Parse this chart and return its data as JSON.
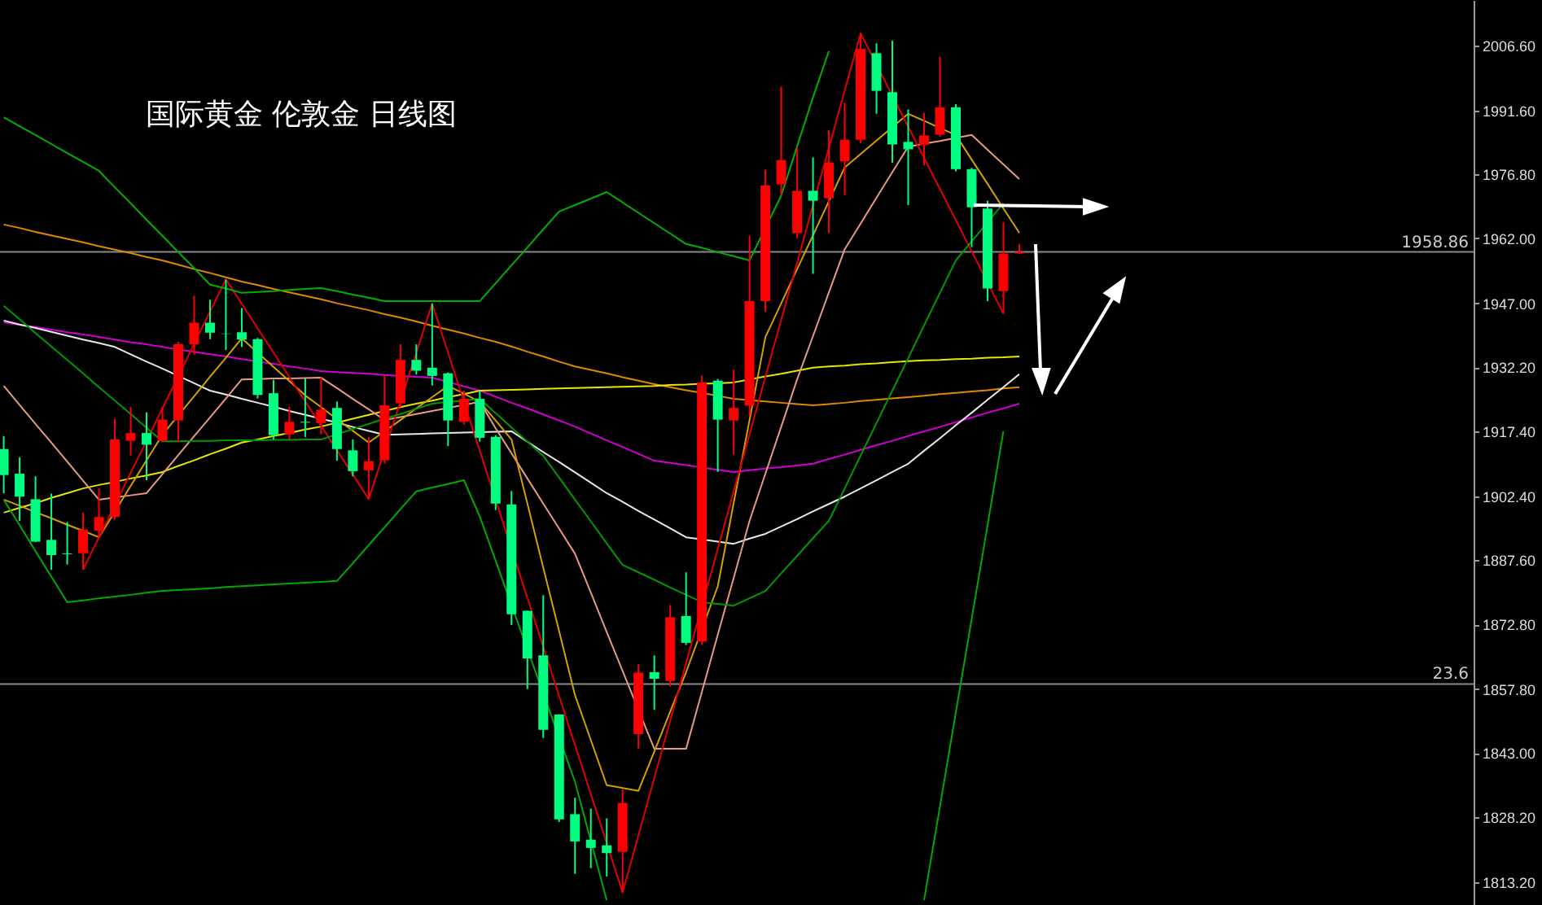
{
  "chart_data": {
    "type": "candlestick",
    "title": "国际黄金 伦敦金 日线图",
    "categories": [
      null,
      null,
      null,
      null,
      null,
      null,
      null,
      null,
      null,
      null,
      null,
      null,
      null,
      null,
      null,
      null,
      null,
      null,
      null,
      null,
      null,
      null,
      null,
      null,
      null,
      null,
      null,
      null,
      null,
      null,
      null,
      null,
      null,
      null,
      null,
      null,
      null,
      null,
      null,
      null,
      null,
      null,
      null,
      null,
      null,
      null,
      null,
      null,
      null,
      null,
      null,
      null,
      null,
      null,
      null,
      null,
      null,
      null,
      null,
      null,
      null,
      null,
      null,
      null,
      null
    ],
    "ohlc": [
      [
        1913.3,
        1916.3,
        1903.1,
        1907.3
      ],
      [
        1907.6,
        1911.4,
        1896.7,
        1902.3
      ],
      [
        1901.7,
        1907.0,
        1891.8,
        1891.9
      ],
      [
        1892.3,
        1903.0,
        1885.4,
        1888.8
      ],
      [
        1889.2,
        1896.4,
        1886.6,
        1889.0
      ],
      [
        1889.2,
        1898.6,
        1885.4,
        1894.7
      ],
      [
        1894.4,
        1904.2,
        1893.0,
        1897.6
      ],
      [
        1897.6,
        1920.3,
        1897.0,
        1915.5
      ],
      [
        1915.2,
        1923.0,
        1911.8,
        1917.0
      ],
      [
        1917.0,
        1921.8,
        1906.1,
        1914.3
      ],
      [
        1915.2,
        1923.0,
        1914.9,
        1920.1
      ],
      [
        1919.9,
        1938.1,
        1914.9,
        1937.5
      ],
      [
        1937.5,
        1948.7,
        1935.1,
        1942.5
      ],
      [
        1942.5,
        1947.8,
        1938.7,
        1940.2
      ],
      [
        1940.0,
        1952.5,
        1936.2,
        1939.9
      ],
      [
        1940.3,
        1945.9,
        1936.9,
        1938.6
      ],
      [
        1938.7,
        1939.0,
        1925.0,
        1925.8
      ],
      [
        1926.2,
        1929.3,
        1915.5,
        1916.5
      ],
      [
        1916.7,
        1923.0,
        1915.5,
        1919.6
      ],
      [
        1919.6,
        1929.6,
        1916.1,
        1919.4
      ],
      [
        1919.3,
        1929.9,
        1916.7,
        1922.4
      ],
      [
        1922.8,
        1924.3,
        1910.6,
        1913.3
      ],
      [
        1913.0,
        1915.5,
        1907.0,
        1908.2
      ],
      [
        1908.4,
        1916.1,
        1901.7,
        1910.5
      ],
      [
        1910.7,
        1930.6,
        1910.0,
        1923.4
      ],
      [
        1923.9,
        1937.5,
        1923.0,
        1933.9
      ],
      [
        1933.9,
        1937.5,
        1930.5,
        1931.4
      ],
      [
        1932.1,
        1946.9,
        1928.0,
        1930.2
      ],
      [
        1930.8,
        1931.0,
        1914.0,
        1919.9
      ],
      [
        1919.6,
        1926.8,
        1919.0,
        1924.9
      ],
      [
        1924.9,
        1926.8,
        1915.0,
        1915.9
      ],
      [
        1916.1,
        1916.5,
        1899.2,
        1900.7
      ],
      [
        1900.5,
        1903.6,
        1872.6,
        1875.1
      ],
      [
        1875.9,
        1876.0,
        1857.8,
        1864.9
      ],
      [
        1865.6,
        1879.5,
        1846.5,
        1848.4
      ],
      [
        1851.9,
        1852.0,
        1827.1,
        1827.7
      ],
      [
        1828.9,
        1832.7,
        1815.1,
        1822.6
      ],
      [
        1823.0,
        1830.2,
        1816.4,
        1821.1
      ],
      [
        1821.7,
        1827.9,
        1814.5,
        1819.9
      ],
      [
        1820.2,
        1834.6,
        1810.8,
        1831.5
      ],
      [
        1847.4,
        1863.6,
        1844.0,
        1861.6
      ],
      [
        1861.7,
        1865.6,
        1853.0,
        1860.2
      ],
      [
        1859.7,
        1877.2,
        1858.4,
        1874.4
      ],
      [
        1874.7,
        1884.8,
        1868.0,
        1868.5
      ],
      [
        1868.8,
        1930.3,
        1868.0,
        1928.7
      ],
      [
        1929.1,
        1929.5,
        1908.0,
        1920.1
      ],
      [
        1919.9,
        1931.6,
        1912.0,
        1922.8
      ],
      [
        1923.3,
        1962.6,
        1921.0,
        1947.5
      ],
      [
        1947.5,
        1977.9,
        1945.0,
        1974.2
      ],
      [
        1974.5,
        1997.1,
        1972.0,
        1980.1
      ],
      [
        1963.2,
        1983.0,
        1962.0,
        1973.0
      ],
      [
        1973.0,
        1980.7,
        1953.8,
        1970.7
      ],
      [
        1971.3,
        1987.0,
        1963.2,
        1979.5
      ],
      [
        1979.8,
        1993.3,
        1972.0,
        1984.8
      ],
      [
        1984.8,
        2009.4,
        1984.0,
        2005.8
      ],
      [
        2004.8,
        2007.1,
        1990.8,
        1996.1
      ],
      [
        1995.8,
        2007.7,
        1979.5,
        1983.7
      ],
      [
        1984.3,
        1991.8,
        1969.7,
        1982.6
      ],
      [
        1983.6,
        1991.0,
        1978.9,
        1985.8
      ],
      [
        1986.0,
        2004.0,
        1985.5,
        1992.3
      ],
      [
        1992.3,
        1993.0,
        1977.5,
        1978.0
      ],
      [
        1978.0,
        1978.3,
        1960.0,
        1969.2
      ],
      [
        1968.9,
        1970.7,
        1947.5,
        1950.4
      ],
      [
        1949.8,
        1965.7,
        1944.6,
        1958.5
      ],
      [
        1958.5,
        1960.7,
        1958.4,
        1958.86
      ]
    ],
    "colors": [
      "#00ff80",
      "#00ff80",
      "#00ff80",
      "#00ff80",
      "#00ff80",
      "#ff0000",
      "#ff0000",
      "#ff0000",
      "#ff0000",
      "#00ff80",
      "#ff0000",
      "#ff0000",
      "#ff0000",
      "#00ff80",
      "#00ff80",
      "#00ff80",
      "#00ff80",
      "#00ff80",
      "#ff0000",
      "#00ff80",
      "#ff0000",
      "#00ff80",
      "#00ff80",
      "#ff0000",
      "#ff0000",
      "#ff0000",
      "#00ff80",
      "#00ff80",
      "#00ff80",
      "#ff0000",
      "#00ff80",
      "#00ff80",
      "#00ff80",
      "#00ff80",
      "#00ff80",
      "#00ff80",
      "#00ff80",
      "#00ff80",
      "#00ff80",
      "#ff0000",
      "#ff0000",
      "#00ff80",
      "#ff0000",
      "#00ff80",
      "#ff0000",
      "#00ff80",
      "#ff0000",
      "#ff0000",
      "#ff0000",
      "#ff0000",
      "#ff0000",
      "#00ff80",
      "#ff0000",
      "#ff0000",
      "#ff0000",
      "#00ff80",
      "#00ff80",
      "#00ff80",
      "#ff0000",
      "#ff0000",
      "#00ff80",
      "#00ff80",
      "#00ff80",
      "#ff0000",
      "#ff0000"
    ],
    "series": [
      {
        "type": "line",
        "color": "#d000d0",
        "values": [
          1942.6,
          1942.0,
          1941.5,
          1940.9,
          1940.3,
          1939.8,
          1939.2,
          1938.6,
          1938.0,
          1937.5,
          1936.9,
          1936.3,
          1935.8,
          1935.2,
          1934.7,
          1934.1,
          1933.5,
          1933.0,
          1932.4,
          1931.9,
          1931.3,
          1931.1,
          1930.9,
          1930.7,
          1930.4,
          1930.2,
          1930.0,
          1929.8,
          1928.8,
          1927.8,
          1926.8,
          1925.4,
          1924.0,
          1922.7,
          1921.3,
          1919.9,
          1918.5,
          1916.9,
          1915.3,
          1913.8,
          1912.2,
          1910.6,
          1910.1,
          1909.6,
          1909.0,
          1908.5,
          1908.0,
          1908.4,
          1908.8,
          1909.1,
          1909.5,
          1909.9,
          1911.0,
          1912.0,
          1913.1,
          1914.2,
          1915.2,
          1916.3,
          1917.4,
          1918.4,
          1919.5,
          1920.6,
          1921.7,
          1922.7,
          1923.8
        ]
      },
      {
        "type": "line",
        "color": "#e08800",
        "values": [
          1965.2,
          1964.4,
          1963.5,
          1962.7,
          1961.9,
          1961.1,
          1960.2,
          1959.4,
          1958.6,
          1957.7,
          1956.9,
          1955.9,
          1954.9,
          1954.0,
          1953.0,
          1952.0,
          1951.2,
          1950.3,
          1949.5,
          1948.7,
          1947.9,
          1947.0,
          1946.2,
          1945.4,
          1944.5,
          1943.7,
          1942.8,
          1941.8,
          1940.9,
          1940.0,
          1939.0,
          1938.1,
          1937.0,
          1935.8,
          1934.7,
          1933.5,
          1932.4,
          1931.6,
          1930.8,
          1929.9,
          1929.1,
          1928.3,
          1927.6,
          1926.9,
          1926.3,
          1925.6,
          1924.9,
          1924.6,
          1924.3,
          1924.0,
          1923.7,
          1923.4,
          1923.7,
          1924.0,
          1924.4,
          1924.7,
          1925.0,
          1925.3,
          1925.6,
          1926.0,
          1926.3,
          1926.6,
          1926.9,
          1927.3,
          1927.6
        ]
      },
      {
        "type": "line",
        "color": "#e6e600",
        "values": [
          1898.6,
          1899.7,
          1900.8,
          1902.0,
          1903.1,
          1904.2,
          1905.0,
          1905.7,
          1906.5,
          1907.2,
          1908.0,
          1909.4,
          1910.7,
          1912.1,
          1913.4,
          1914.8,
          1915.5,
          1916.3,
          1917.0,
          1917.8,
          1918.5,
          1919.4,
          1920.3,
          1921.2,
          1922.1,
          1923.0,
          1923.8,
          1924.5,
          1925.3,
          1926.0,
          1926.8,
          1926.9,
          1927.0,
          1927.1,
          1927.2,
          1927.3,
          1927.4,
          1927.5,
          1927.6,
          1927.7,
          1927.8,
          1927.9,
          1928.1,
          1928.2,
          1928.4,
          1928.5,
          1928.7,
          1929.4,
          1930.1,
          1930.7,
          1931.4,
          1932.1,
          1932.4,
          1932.6,
          1932.9,
          1933.1,
          1933.4,
          1933.6,
          1933.8,
          1933.9,
          1934.1,
          1934.2,
          1934.4,
          1934.5,
          1934.7
        ]
      },
      {
        "type": "line",
        "color": "#e8e8e8",
        "values": [
          1943.0,
          1942.1,
          1941.3,
          1940.4,
          1939.5,
          1938.6,
          1937.8,
          1936.9,
          1935.2,
          1933.5,
          1931.9,
          1930.2,
          1928.5,
          1926.8,
          1925.9,
          1924.9,
          1924.0,
          1923.1,
          1922.1,
          1921.2,
          1920.3,
          1919.4,
          1918.4,
          1917.5,
          1916.6,
          1916.7,
          1916.8,
          1916.9,
          1917.0,
          1917.1,
          1917.2,
          1917.3,
          1917.4,
          1915.0,
          1912.6,
          1910.3,
          1907.9,
          1905.5,
          1903.1,
          1901.1,
          1899.0,
          1897.0,
          1895.0,
          1892.9,
          1892.4,
          1891.9,
          1891.4,
          1892.6,
          1893.7,
          1895.4,
          1897.1,
          1898.9,
          1900.6,
          1902.3,
          1904.2,
          1906.1,
          1908.0,
          1909.9,
          1912.9,
          1915.8,
          1918.8,
          1921.7,
          1924.7,
          1927.6,
          1930.6
        ]
      },
      {
        "type": "line",
        "color": "#e89a80",
        "values": [
          1927.9,
          1923.5,
          1919.1,
          1914.8,
          1910.4,
          1906.0,
          1901.6,
          1902.1,
          1902.6,
          1903.1,
          1907.5,
          1911.9,
          1916.3,
          1920.6,
          1925.0,
          1929.4,
          1929.5,
          1929.6,
          1929.6,
          1929.7,
          1929.8,
          1927.4,
          1924.9,
          1922.5,
          1920.0,
          1920.7,
          1921.4,
          1922.1,
          1922.8,
          1923.5,
          1924.2,
          1918.1,
          1912.3,
          1906.5,
          1900.7,
          1894.9,
          1889.1,
          1880.1,
          1871.0,
          1862.0,
          null,
          1844.0,
          null,
          1844.0,
          1857.2,
          1870.4,
          1883.5,
          1896.7,
          1907.6,
          1918.5,
          1929.4,
          1939.4,
          1949.5,
          1959.5,
          1965.4,
          1971.4,
          1977.3,
          1983.2,
          1983.9,
          1984.5,
          1985.2,
          1985.9,
          1982.5,
          1979.1,
          1975.7
        ]
      },
      {
        "type": "line",
        "color": "#d4a000",
        "values": [
          1901.6,
          1900.2,
          1898.7,
          1897.3,
          1895.8,
          1894.4,
          1892.9,
          1898.8,
          1904.8,
          1910.7,
          1916.6,
          1921.1,
          1925.5,
          1930.0,
          1934.4,
          1938.9,
          1935.6,
          1932.3,
          1929.0,
          1925.7,
          1923.0,
          1920.2,
          1917.5,
          1914.8,
          1917.4,
          1920.0,
          1922.7,
          1925.3,
          1927.9,
          1926.1,
          1924.2,
          1919.9,
          1915.5,
          1900.7,
          1885.9,
          1871.2,
          1856.4,
          1846.0,
          1835.6,
          null,
          1834.3,
          1843.4,
          1852.6,
          1861.7,
          null,
          1881.6,
          1900.8,
          1920.0,
          1939.2,
          1947.0,
          1954.9,
          1962.7,
          1970.6,
          1978.4,
          1981.5,
          1984.6,
          1987.7,
          1990.8,
          1989.2,
          1987.5,
          1985.9,
          1980.2,
          1974.6,
          1968.9,
          1963.3
        ]
      },
      {
        "type": "line",
        "color": "#e00000",
        "values": [
          null,
          null,
          null,
          null,
          null,
          1885.4,
          1892.9,
          1900.3,
          1907.8,
          1915.2,
          1922.7,
          1930.1,
          1937.6,
          1945.1,
          1952.5,
          1946.9,
          1941.2,
          1935.6,
          1929.9,
          1924.3,
          1918.7,
          1913.0,
          1907.4,
          1901.7,
          1913.0,
          1924.3,
          1935.6,
          1946.9,
          1935.6,
          1924.2,
          1912.9,
          null,
          null,
          1878.9,
          1867.6,
          1856.2,
          1844.9,
          1833.5,
          1822.2,
          1810.8,
          1824.0,
          1837.3,
          1850.5,
          1863.8,
          1877.0,
          1890.2,
          1903.5,
          1916.7,
          1930.0,
          1943.2,
          1956.4,
          1969.7,
          1982.9,
          1996.2,
          2009.4,
          null,
          1995.0,
          1987.8,
          1980.6,
          1973.4,
          1966.2,
          1959.0,
          1951.8,
          1944.6,
          null
        ]
      },
      {
        "type": "line",
        "color": "#00b000",
        "values": [
          1990.0,
          1987.9,
          1985.9,
          1983.8,
          1981.7,
          1979.7,
          1977.6,
          1973.8,
          1970.1,
          1966.3,
          1962.6,
          1958.8,
          1955.1,
          1951.3,
          1950.4,
          1949.4,
          1949.6,
          1949.8,
          1950.1,
          1950.3,
          1950.5,
          1949.8,
          1949.0,
          1948.3,
          1947.5,
          1947.5,
          1947.5,
          1947.5,
          1947.5,
          1947.5,
          1947.5,
          1951.6,
          1955.8,
          1959.9,
          1964.1,
          1968.2,
          1969.7,
          1971.2,
          1972.7,
          1970.3,
          1967.9,
          1965.5,
          1963.1,
          1960.7,
          1959.8,
          1958.8,
          1957.9,
          1956.9,
          null,
          1971.9,
          1983.3,
          1994.6,
          2005.3,
          null,
          null,
          null,
          null,
          null,
          null,
          null,
          null,
          null,
          null,
          null,
          null
        ]
      },
      {
        "type": "line",
        "color": "#009900",
        "values": [
          1946.4,
          1943.3,
          1940.1,
          1937.0,
          1933.9,
          1930.8,
          1927.6,
          1924.5,
          1921.4,
          1918.2,
          1915.1,
          1915.1,
          1915.2,
          1915.2,
          1915.3,
          1915.3,
          1915.3,
          1915.4,
          1915.4,
          1915.5,
          1915.5,
          1916.7,
          1917.9,
          1919.1,
          1920.3,
          1921.4,
          1922.6,
          1923.8,
          1924.2,
          1924.5,
          1924.9,
          1921.6,
          1918.3,
          1915.0,
          1911.7,
          1906.7,
          1901.6,
          1896.6,
          1891.5,
          1886.5,
          1884.8,
          1883.1,
          1881.3,
          1879.6,
          1877.9,
          1877.5,
          1877.1,
          1878.8,
          1880.5,
          1884.6,
          1888.6,
          1892.7,
          1896.7,
          1904.2,
          1911.8,
          1919.3,
          1926.8,
          1934.3,
          1941.9,
          1949.4,
          1956.9,
          1961.3,
          1965.7,
          1970.1,
          null
        ]
      },
      {
        "type": "line",
        "color": "#00aa00",
        "values": [
          1901.6,
          1895.7,
          1889.7,
          1883.8,
          1877.9,
          1878.3,
          1878.8,
          1879.2,
          1879.6,
          1880.1,
          1880.5,
          1880.7,
          1880.9,
          1881.1,
          1881.4,
          1881.6,
          1881.8,
          1882.0,
          1882.2,
          1882.4,
          1882.6,
          1882.8,
          1886.9,
          1891.1,
          1895.2,
          1899.4,
          1903.5,
          1904.4,
          1905.2,
          1906.1,
          1897.7,
          null,
          null,
          null,
          null,
          null,
          1836.4,
          1822.7,
          1809.0,
          null,
          null,
          null,
          null,
          null,
          null,
          null,
          null,
          null,
          null,
          null,
          null,
          null,
          null,
          null,
          null,
          null,
          null,
          null,
          null,
          null,
          null,
          null,
          null,
          null,
          null
        ]
      },
      {
        "type": "line",
        "color": "#00aa00",
        "values": [
          null,
          null,
          null,
          null,
          null,
          null,
          null,
          null,
          null,
          null,
          null,
          null,
          null,
          null,
          null,
          null,
          null,
          null,
          null,
          null,
          null,
          null,
          null,
          null,
          null,
          null,
          null,
          null,
          null,
          null,
          null,
          null,
          null,
          null,
          null,
          null,
          null,
          null,
          null,
          null,
          null,
          null,
          null,
          null,
          null,
          null,
          null,
          null,
          null,
          null,
          null,
          null,
          null,
          null,
          null,
          null,
          null,
          null,
          1809.0,
          1830.7,
          1852.4,
          1874.0,
          1895.7,
          1917.4,
          null
        ]
      }
    ],
    "ref_lines": [
      {
        "axis": "y",
        "value": 1958.86,
        "label": "1958.86",
        "color": "#8a8a8a"
      },
      {
        "axis": "y",
        "value": 1859.0,
        "color": "#8a8a8a"
      }
    ],
    "annotations": [
      {
        "text": "23.6",
        "y": 1859.0
      }
    ],
    "ylim": [
      1807.9,
      2017.1
    ],
    "yticks": [
      {
        "value": 2006.6,
        "label": "2006.60"
      },
      {
        "value": 1991.6,
        "label": "1991.60"
      },
      {
        "value": 1976.8,
        "label": "1976.80"
      },
      {
        "value": 1962,
        "label": "1962.00"
      },
      {
        "value": 1947,
        "label": "1947.00"
      },
      {
        "value": 1932.2,
        "label": "1932.20"
      },
      {
        "value": 1917.4,
        "label": "1917.40"
      },
      {
        "value": 1902.4,
        "label": "1902.40"
      },
      {
        "value": 1887.6,
        "label": "1887.60"
      },
      {
        "value": 1872.8,
        "label": "1872.80"
      },
      {
        "value": 1857.8,
        "label": "1857.80"
      },
      {
        "value": 1843,
        "label": "1843.00"
      },
      {
        "value": 1828.2,
        "label": "1828.20"
      },
      {
        "value": 1813.2,
        "label": "1813.20"
      }
    ],
    "tick_labels": "y"
  }
}
